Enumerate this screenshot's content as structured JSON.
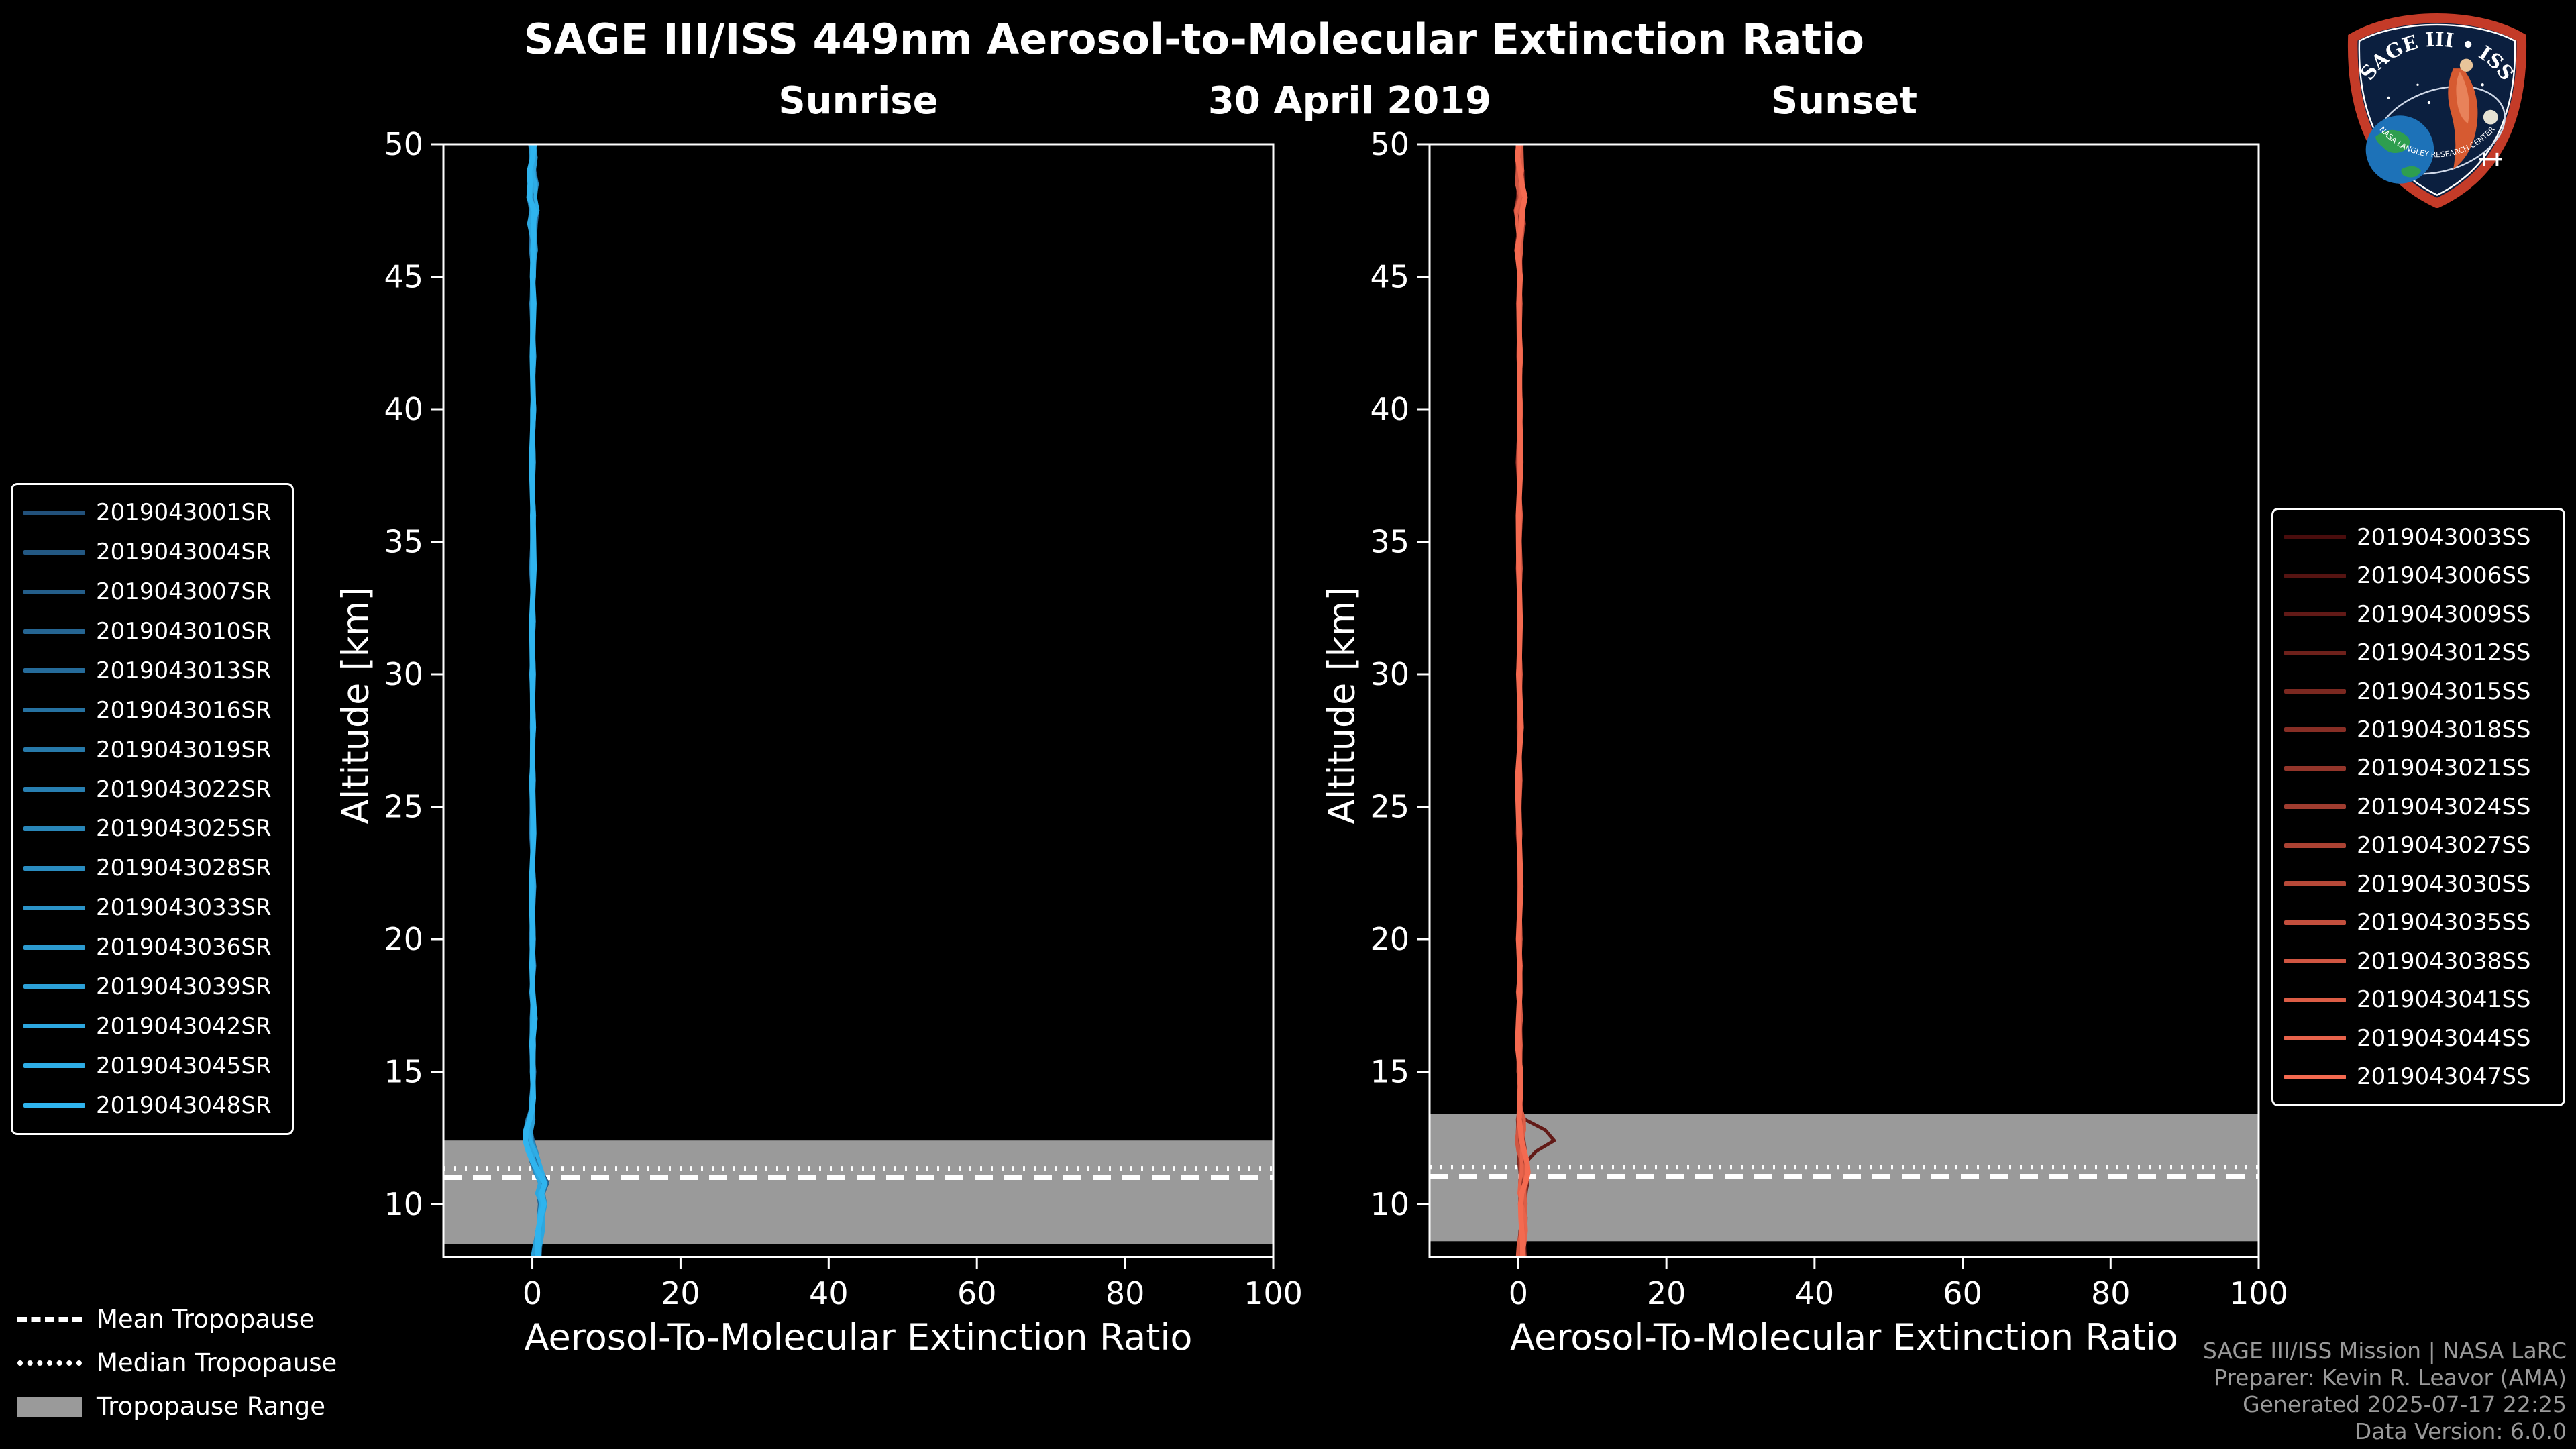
{
  "title": "SAGE III/ISS 449nm Aerosol-to-Molecular Extinction Ratio",
  "date": "30 April 2019",
  "logo": {
    "title": "SAGE III • ISS",
    "arc_text": "NASA LANGLEY RESEARCH CENTER"
  },
  "tropopause_legend": {
    "mean": "Mean Tropopause",
    "median": "Median Tropopause",
    "range": "Tropopause Range"
  },
  "footer": {
    "line1": "SAGE III/ISS Mission | NASA LaRC",
    "line2": "Preparer: Kevin R. Leavor (AMA)",
    "line3": "Generated 2025-07-17 22:25",
    "line4": "Data Version: 6.0.0"
  },
  "chart_data": {
    "type": "line",
    "xlabel": "Aerosol-To-Molecular Extinction Ratio",
    "ylabel": "Altitude [km]",
    "xlim": [
      -12,
      100
    ],
    "ylim": [
      8,
      50
    ],
    "x_ticks": [
      0,
      20,
      40,
      60,
      80,
      100
    ],
    "y_ticks": [
      10,
      15,
      20,
      25,
      30,
      35,
      40,
      45,
      50
    ],
    "band_color": "#9a9a9a",
    "altitudes": [
      8,
      8.5,
      9,
      9.5,
      10,
      10.4,
      10.8,
      11.2,
      11.6,
      12,
      12.4,
      12.8,
      13.2,
      13.6,
      14,
      15,
      16,
      17,
      18,
      19,
      20,
      22,
      24,
      26,
      28,
      30,
      32,
      34,
      36,
      38,
      40,
      42,
      44,
      45,
      46,
      47,
      47.5,
      48,
      48.5,
      49,
      49.5,
      50
    ],
    "panels": [
      {
        "id": "sunrise",
        "title": "Sunrise",
        "tropopause": {
          "mean": 11.0,
          "median": 11.35,
          "range": [
            8.5,
            12.4
          ]
        },
        "ratios": [
          0.5,
          0.8,
          1.0,
          1.2,
          1.4,
          1.0,
          1.5,
          0.9,
          0.4,
          0.0,
          -0.4,
          -0.5,
          -0.3,
          -0.1,
          0.0,
          0.1,
          0.0,
          0.1,
          0.0,
          0.1,
          0.0,
          0.1,
          0.0,
          0.0,
          0.1,
          0.0,
          0.1,
          0.0,
          0.1,
          0.0,
          0.1,
          0.1,
          0.0,
          0.1,
          0.2,
          0.0,
          0.3,
          -0.1,
          0.2,
          0.0,
          0.1,
          0.0
        ],
        "series": [
          {
            "name": "2019043001SR",
            "color": "#22517b"
          },
          {
            "name": "2019043004SR",
            "color": "#235883"
          },
          {
            "name": "2019043007SR",
            "color": "#245e8a"
          },
          {
            "name": "2019043010SR",
            "color": "#256592"
          },
          {
            "name": "2019043013SR",
            "color": "#256b9a"
          },
          {
            "name": "2019043016SR",
            "color": "#2672a1"
          },
          {
            "name": "2019043019SR",
            "color": "#2779a9"
          },
          {
            "name": "2019043022SR",
            "color": "#287fb1"
          },
          {
            "name": "2019043025SR",
            "color": "#2986b8"
          },
          {
            "name": "2019043028SR",
            "color": "#2a8cc0"
          },
          {
            "name": "2019043033SR",
            "color": "#2b93c8"
          },
          {
            "name": "2019043036SR",
            "color": "#2c9acf"
          },
          {
            "name": "2019043039SR",
            "color": "#2ca0d7"
          },
          {
            "name": "2019043042SR",
            "color": "#2da7df"
          },
          {
            "name": "2019043045SR",
            "color": "#2eade6"
          },
          {
            "name": "2019043048SR",
            "color": "#2fb4ee"
          }
        ]
      },
      {
        "id": "sunset",
        "title": "Sunset",
        "tropopause": {
          "mean": 11.05,
          "median": 11.4,
          "range": [
            8.6,
            13.4
          ]
        },
        "ratios": [
          0.4,
          0.5,
          0.6,
          0.7,
          0.6,
          0.5,
          0.7,
          0.8,
          0.6,
          0.4,
          0.3,
          0.4,
          0.3,
          0.2,
          0.2,
          0.2,
          0.1,
          0.2,
          0.1,
          0.2,
          0.1,
          0.2,
          0.1,
          0.1,
          0.2,
          0.1,
          0.2,
          0.1,
          0.2,
          0.1,
          0.2,
          0.2,
          0.1,
          0.2,
          0.1,
          0.3,
          0.1,
          0.4,
          0.2,
          0.3,
          0.1,
          0.2
        ],
        "outlier": {
          "series_index": 2,
          "alt": 12.5,
          "amp": 4.2,
          "sigma": 0.35
        },
        "series": [
          {
            "name": "2019043003SS",
            "color": "#4a0d0d"
          },
          {
            "name": "2019043006SS",
            "color": "#561412"
          },
          {
            "name": "2019043009SS",
            "color": "#621a17"
          },
          {
            "name": "2019043012SS",
            "color": "#6e211b"
          },
          {
            "name": "2019043015SS",
            "color": "#7b2820"
          },
          {
            "name": "2019043018SS",
            "color": "#872e25"
          },
          {
            "name": "2019043021SS",
            "color": "#93352a"
          },
          {
            "name": "2019043024SS",
            "color": "#9f3c2f"
          },
          {
            "name": "2019043027SS",
            "color": "#ab4233"
          },
          {
            "name": "2019043030SS",
            "color": "#b74938"
          },
          {
            "name": "2019043035SS",
            "color": "#c34f3d"
          },
          {
            "name": "2019043038SS",
            "color": "#d05642"
          },
          {
            "name": "2019043041SS",
            "color": "#dc5d46"
          },
          {
            "name": "2019043044SS",
            "color": "#e8634b"
          },
          {
            "name": "2019043047SS",
            "color": "#f46a50"
          }
        ]
      }
    ]
  }
}
